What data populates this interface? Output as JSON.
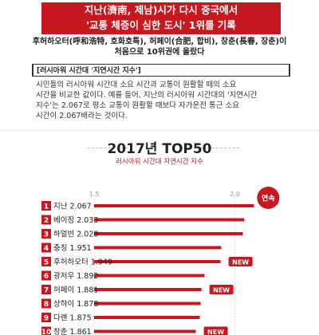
{
  "header": {
    "line1": "지난(濟南, 제남)시가 다시 중국에서",
    "line2": "'교통 체증이 심한 도시' 1위를 기록"
  },
  "subheading": {
    "line1": "후허하오터(呼和浩特, 호화호특), 허페이(合肥, 합비), 창춘(長春, 장춘)이",
    "line2": "처음으로 10위권에 올랐다"
  },
  "section_tag": "[러시아워 시간대 '지연시간 지수']",
  "body_text": {
    "line1": "시민들의 러시아워 시간대 소요 시간과 교통이 원활할 때의 소요",
    "line2": "시간을 비교한 값이다. 예를 들어, 지난의 러시아워 시간대의 '지연시간",
    "line3": "지수'는 2.067로 평소 교통이 원활할 때보다 자가운전 통근 소요",
    "line4": "시간이 2.067배라는 것이다."
  },
  "chart_data": {
    "type": "bar",
    "title": "2017년 TOP50",
    "subtitle": "러시아워 시간대 지연시간 지수",
    "x_ticks": [
      "1.5",
      "2.0"
    ],
    "xlim": [
      1.5,
      2.1
    ],
    "ranks": [
      "1",
      "2",
      "3",
      "4",
      "5",
      "6",
      "7",
      "8",
      "9",
      "10"
    ],
    "categories": [
      "지난",
      "베이징",
      "하얼빈",
      "충칭",
      "후허하오터",
      "광저우",
      "허페이",
      "상하이",
      "다롄",
      "창춘"
    ],
    "values": [
      2.067,
      2.033,
      2.028,
      1.951,
      1.949,
      1.892,
      1.881,
      1.878,
      1.875,
      1.861
    ],
    "value_labels": [
      "2.067",
      "2.033",
      "2.028",
      "1.951",
      "1.949",
      "1.892",
      "1.881",
      "1.878",
      "1.875",
      "1.861"
    ],
    "new_flags": [
      false,
      false,
      false,
      false,
      true,
      false,
      true,
      false,
      false,
      true
    ],
    "new_label": "NEW",
    "badge_label": "연속",
    "badge_index": 0,
    "colors": {
      "bar": "#c8171e",
      "rank_box": "#c8171e",
      "accent": "#c8171e"
    }
  }
}
